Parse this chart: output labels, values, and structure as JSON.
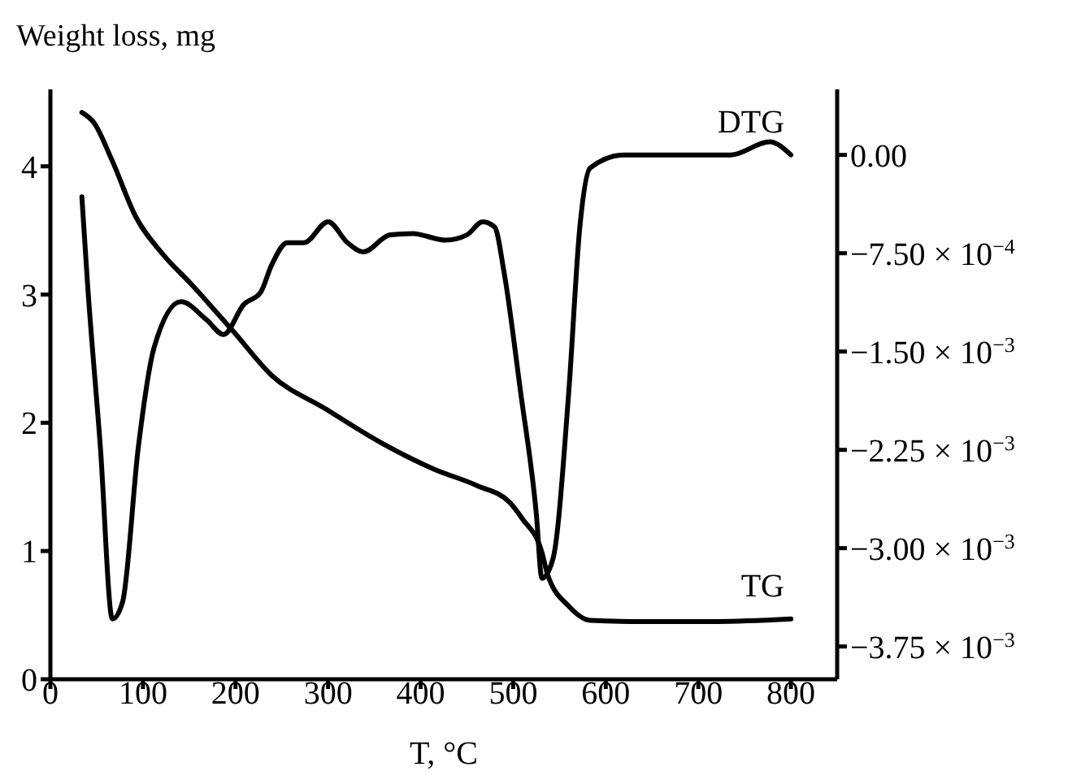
{
  "chart_data": {
    "type": "line",
    "xlabel": "T, °C",
    "ylabel": "Weight loss, mg",
    "xlim": [
      0,
      850
    ],
    "xticks": [
      0,
      100,
      200,
      300,
      400,
      500,
      600,
      700,
      800
    ],
    "ylim": [
      0,
      4.6
    ],
    "yticks": [
      0,
      1,
      2,
      3,
      4
    ],
    "y2lim": [
      -0.004,
      0.0005
    ],
    "y2ticks": [
      {
        "value": 0,
        "label": "0.00"
      },
      {
        "value": -0.00075,
        "label": "−7.50 × 10$^{−4}$"
      },
      {
        "value": -0.0015,
        "label": "−1.50 × 10$^{−3}$"
      },
      {
        "value": -0.00225,
        "label": "−2.25 × 10$^{−3}$"
      },
      {
        "value": -0.003,
        "label": "−3.00 × 10$^{−3}$"
      },
      {
        "value": -0.00375,
        "label": "−3.75 × 10$^{−3}$"
      }
    ],
    "marker": "none",
    "line_style": "solid",
    "series": [
      {
        "name": "TG",
        "color": "#000000",
        "x": [
          34,
          47,
          67,
          92,
          122,
          151,
          198,
          239,
          297,
          356,
          414,
          461,
          496,
          510,
          531,
          537,
          560,
          583,
          642,
          720,
          800
        ],
        "values": [
          4.42,
          4.34,
          4.04,
          3.61,
          3.31,
          3.09,
          2.71,
          2.37,
          2.11,
          1.85,
          1.64,
          1.51,
          1.38,
          1.25,
          0.99,
          0.82,
          0.57,
          0.46,
          0.45,
          0.45,
          0.47
        ]
      },
      {
        "name": "DTG",
        "color": "#000000",
        "axis": "y2",
        "x": [
          34,
          40,
          54,
          67,
          78,
          95,
          112,
          141,
          169,
          187,
          209,
          227,
          239,
          256,
          274,
          300,
          321,
          338,
          367,
          391,
          427,
          450,
          467,
          480,
          490,
          508,
          525,
          531,
          543,
          560,
          572,
          583,
          620,
          677,
          735,
          777,
          800
        ],
        "values": [
          -0.00032,
          -0.00097,
          -0.00223,
          -0.00354,
          -0.00341,
          -0.00223,
          -0.00147,
          -0.00112,
          -0.00126,
          -0.00137,
          -0.00114,
          -0.00105,
          -0.00084,
          -0.00067,
          -0.00067,
          -0.00051,
          -0.00067,
          -0.00074,
          -0.00061,
          -0.0006,
          -0.00065,
          -0.00061,
          -0.00051,
          -0.00055,
          -0.00089,
          -0.00181,
          -0.00274,
          -0.00323,
          -0.00308,
          -0.00181,
          -0.00055,
          -0.0001,
          0,
          0,
          0,
          0.0001,
          0
        ]
      }
    ]
  }
}
